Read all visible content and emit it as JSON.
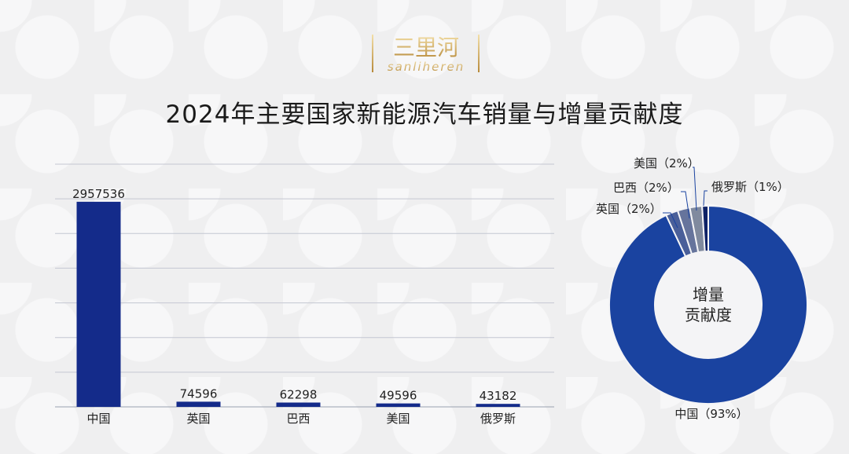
{
  "logo": {
    "cn": "三里河",
    "en": "sanliheren"
  },
  "title": "2024年主要国家新能源汽车销量与增量贡献度",
  "chart_data": [
    {
      "type": "bar",
      "categories": [
        "中国",
        "英国",
        "巴西",
        "美国",
        "俄罗斯"
      ],
      "values": [
        2957536,
        74596,
        62298,
        49596,
        43182
      ],
      "ylim": [
        0,
        3500000
      ],
      "grid": true,
      "yticks_shown": false,
      "color": "#142b8a"
    },
    {
      "type": "pie",
      "donut": true,
      "center_label": [
        "增量",
        "贡献度"
      ],
      "slices": [
        {
          "label": "中国（93%）",
          "value": 93,
          "color": "#1a43a0"
        },
        {
          "label": "英国（2%）",
          "value": 2,
          "color": "#4a5f99"
        },
        {
          "label": "巴西（2%）",
          "value": 2,
          "color": "#66749c"
        },
        {
          "label": "美国（2%）",
          "value": 2,
          "color": "#808a9e"
        },
        {
          "label": "俄罗斯（1%）",
          "value": 1,
          "color": "#0e2266"
        }
      ]
    }
  ]
}
